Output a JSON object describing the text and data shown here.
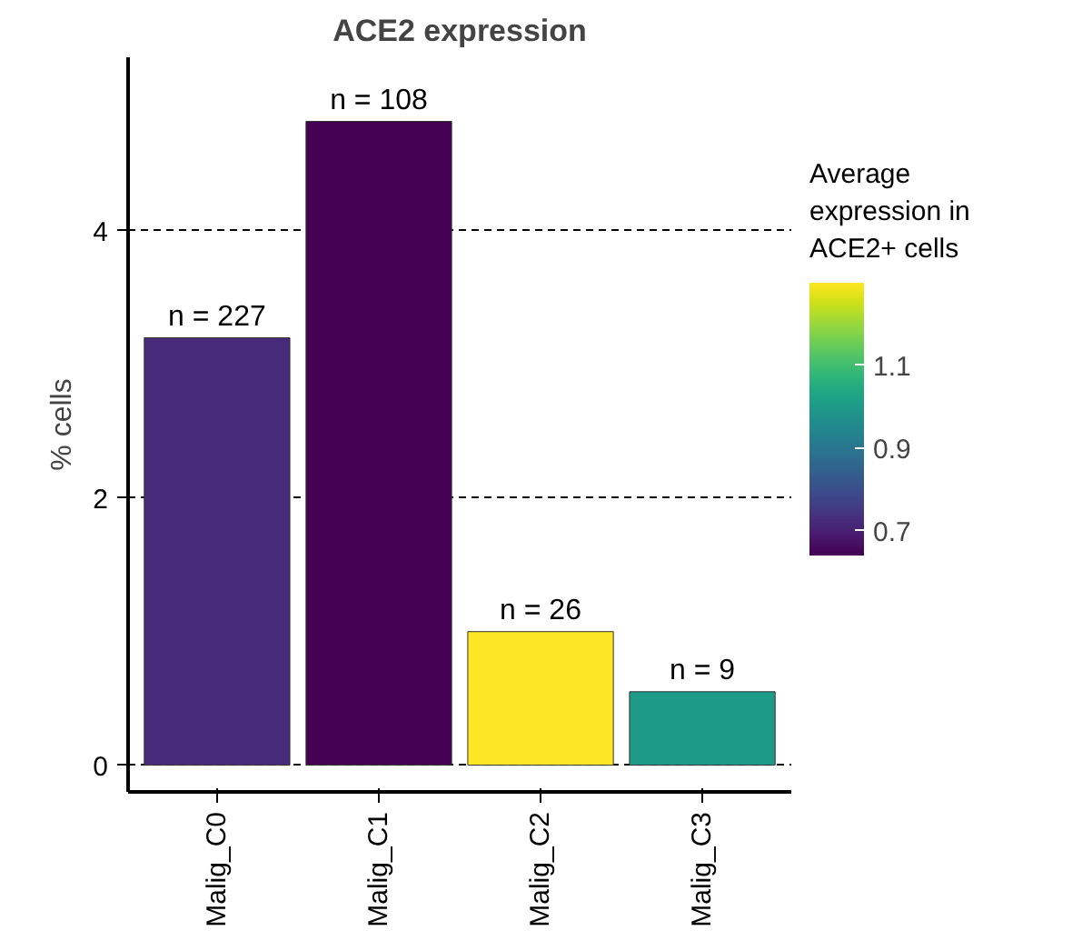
{
  "chart_data": {
    "type": "bar",
    "title": "ACE2 expression",
    "ylabel": "% cells",
    "clabel": "Average expression in ACE2+ cells",
    "categories": [
      "Malig_C0",
      "Malig_C1",
      "Malig_C2",
      "Malig_C3"
    ],
    "values": [
      3.2,
      4.82,
      1.0,
      0.55
    ],
    "cvalues": [
      0.72,
      0.64,
      1.3,
      1.0
    ],
    "clim": [
      0.64,
      1.3
    ],
    "cticks": [
      0.7,
      0.9,
      1.1
    ],
    "annotations": [
      {
        "text": "n = 227",
        "x": "Malig_C0",
        "y": 3.2
      },
      {
        "text": "n = 108",
        "x": "Malig_C1",
        "y": 4.82
      },
      {
        "text": "n = 26",
        "x": "Malig_C2",
        "y": 1.0
      },
      {
        "text": "n = 9",
        "x": "Malig_C3",
        "y": 0.55
      }
    ],
    "ylim": [
      -0.2,
      5.3
    ],
    "yticks": [
      0,
      2,
      4
    ],
    "grid": "y",
    "line_style": "dashed"
  }
}
